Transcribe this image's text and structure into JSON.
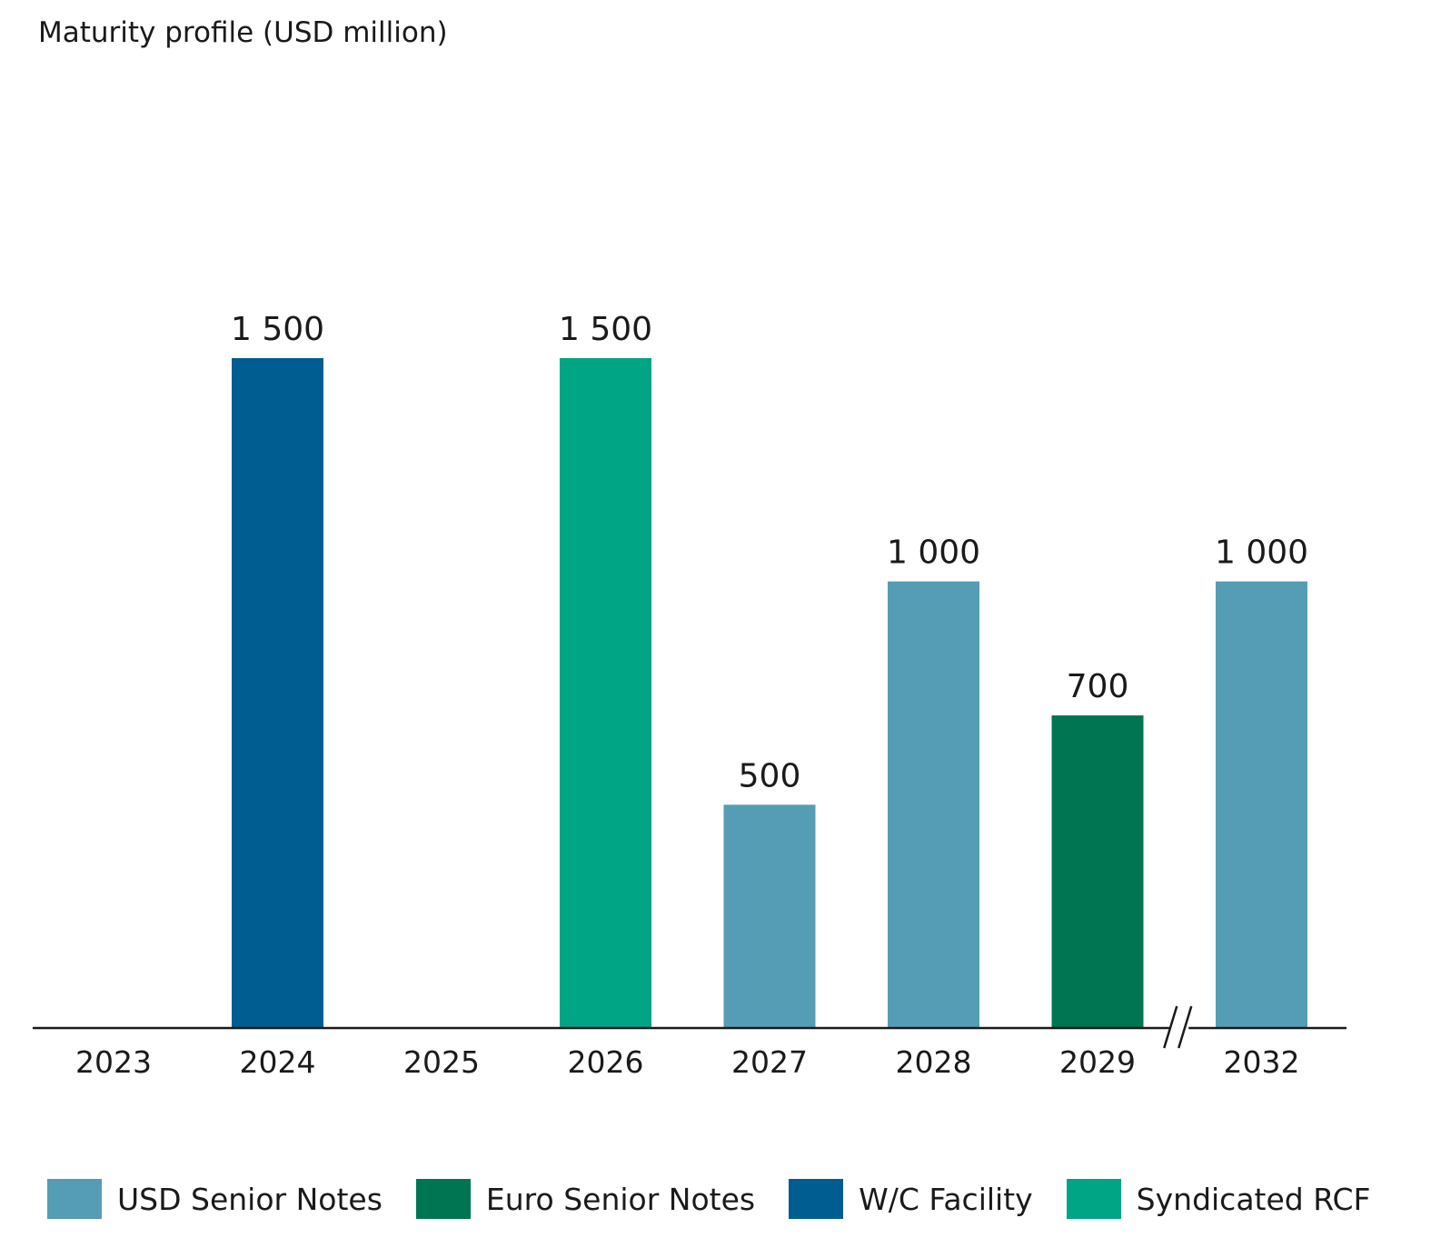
{
  "chart_data": {
    "type": "bar",
    "title": "Maturity profile (USD million)",
    "categories": [
      "2023",
      "2024",
      "2025",
      "2026",
      "2027",
      "2028",
      "2029",
      "2032"
    ],
    "values": [
      0,
      1500,
      0,
      1500,
      500,
      1000,
      700,
      1000
    ],
    "value_labels": [
      "",
      "1 500",
      "",
      "1 500",
      "500",
      "1 000",
      "700",
      "1 000"
    ],
    "bar_series": [
      null,
      "W/C Facility",
      null,
      "Syndicated RCF",
      "USD Senior Notes",
      "USD Senior Notes",
      "Euro Senior Notes",
      "USD Senior Notes"
    ],
    "axis_break_between": [
      "2029",
      "2032"
    ],
    "ylim": [
      0,
      1500
    ],
    "grid": false,
    "legend_position": "bottom",
    "series": [
      {
        "name": "USD Senior Notes",
        "color": "#559db5"
      },
      {
        "name": "Euro Senior Notes",
        "color": "#007552"
      },
      {
        "name": "W/C Facility",
        "color": "#005d91"
      },
      {
        "name": "Syndicated RCF",
        "color": "#00a585"
      }
    ]
  }
}
